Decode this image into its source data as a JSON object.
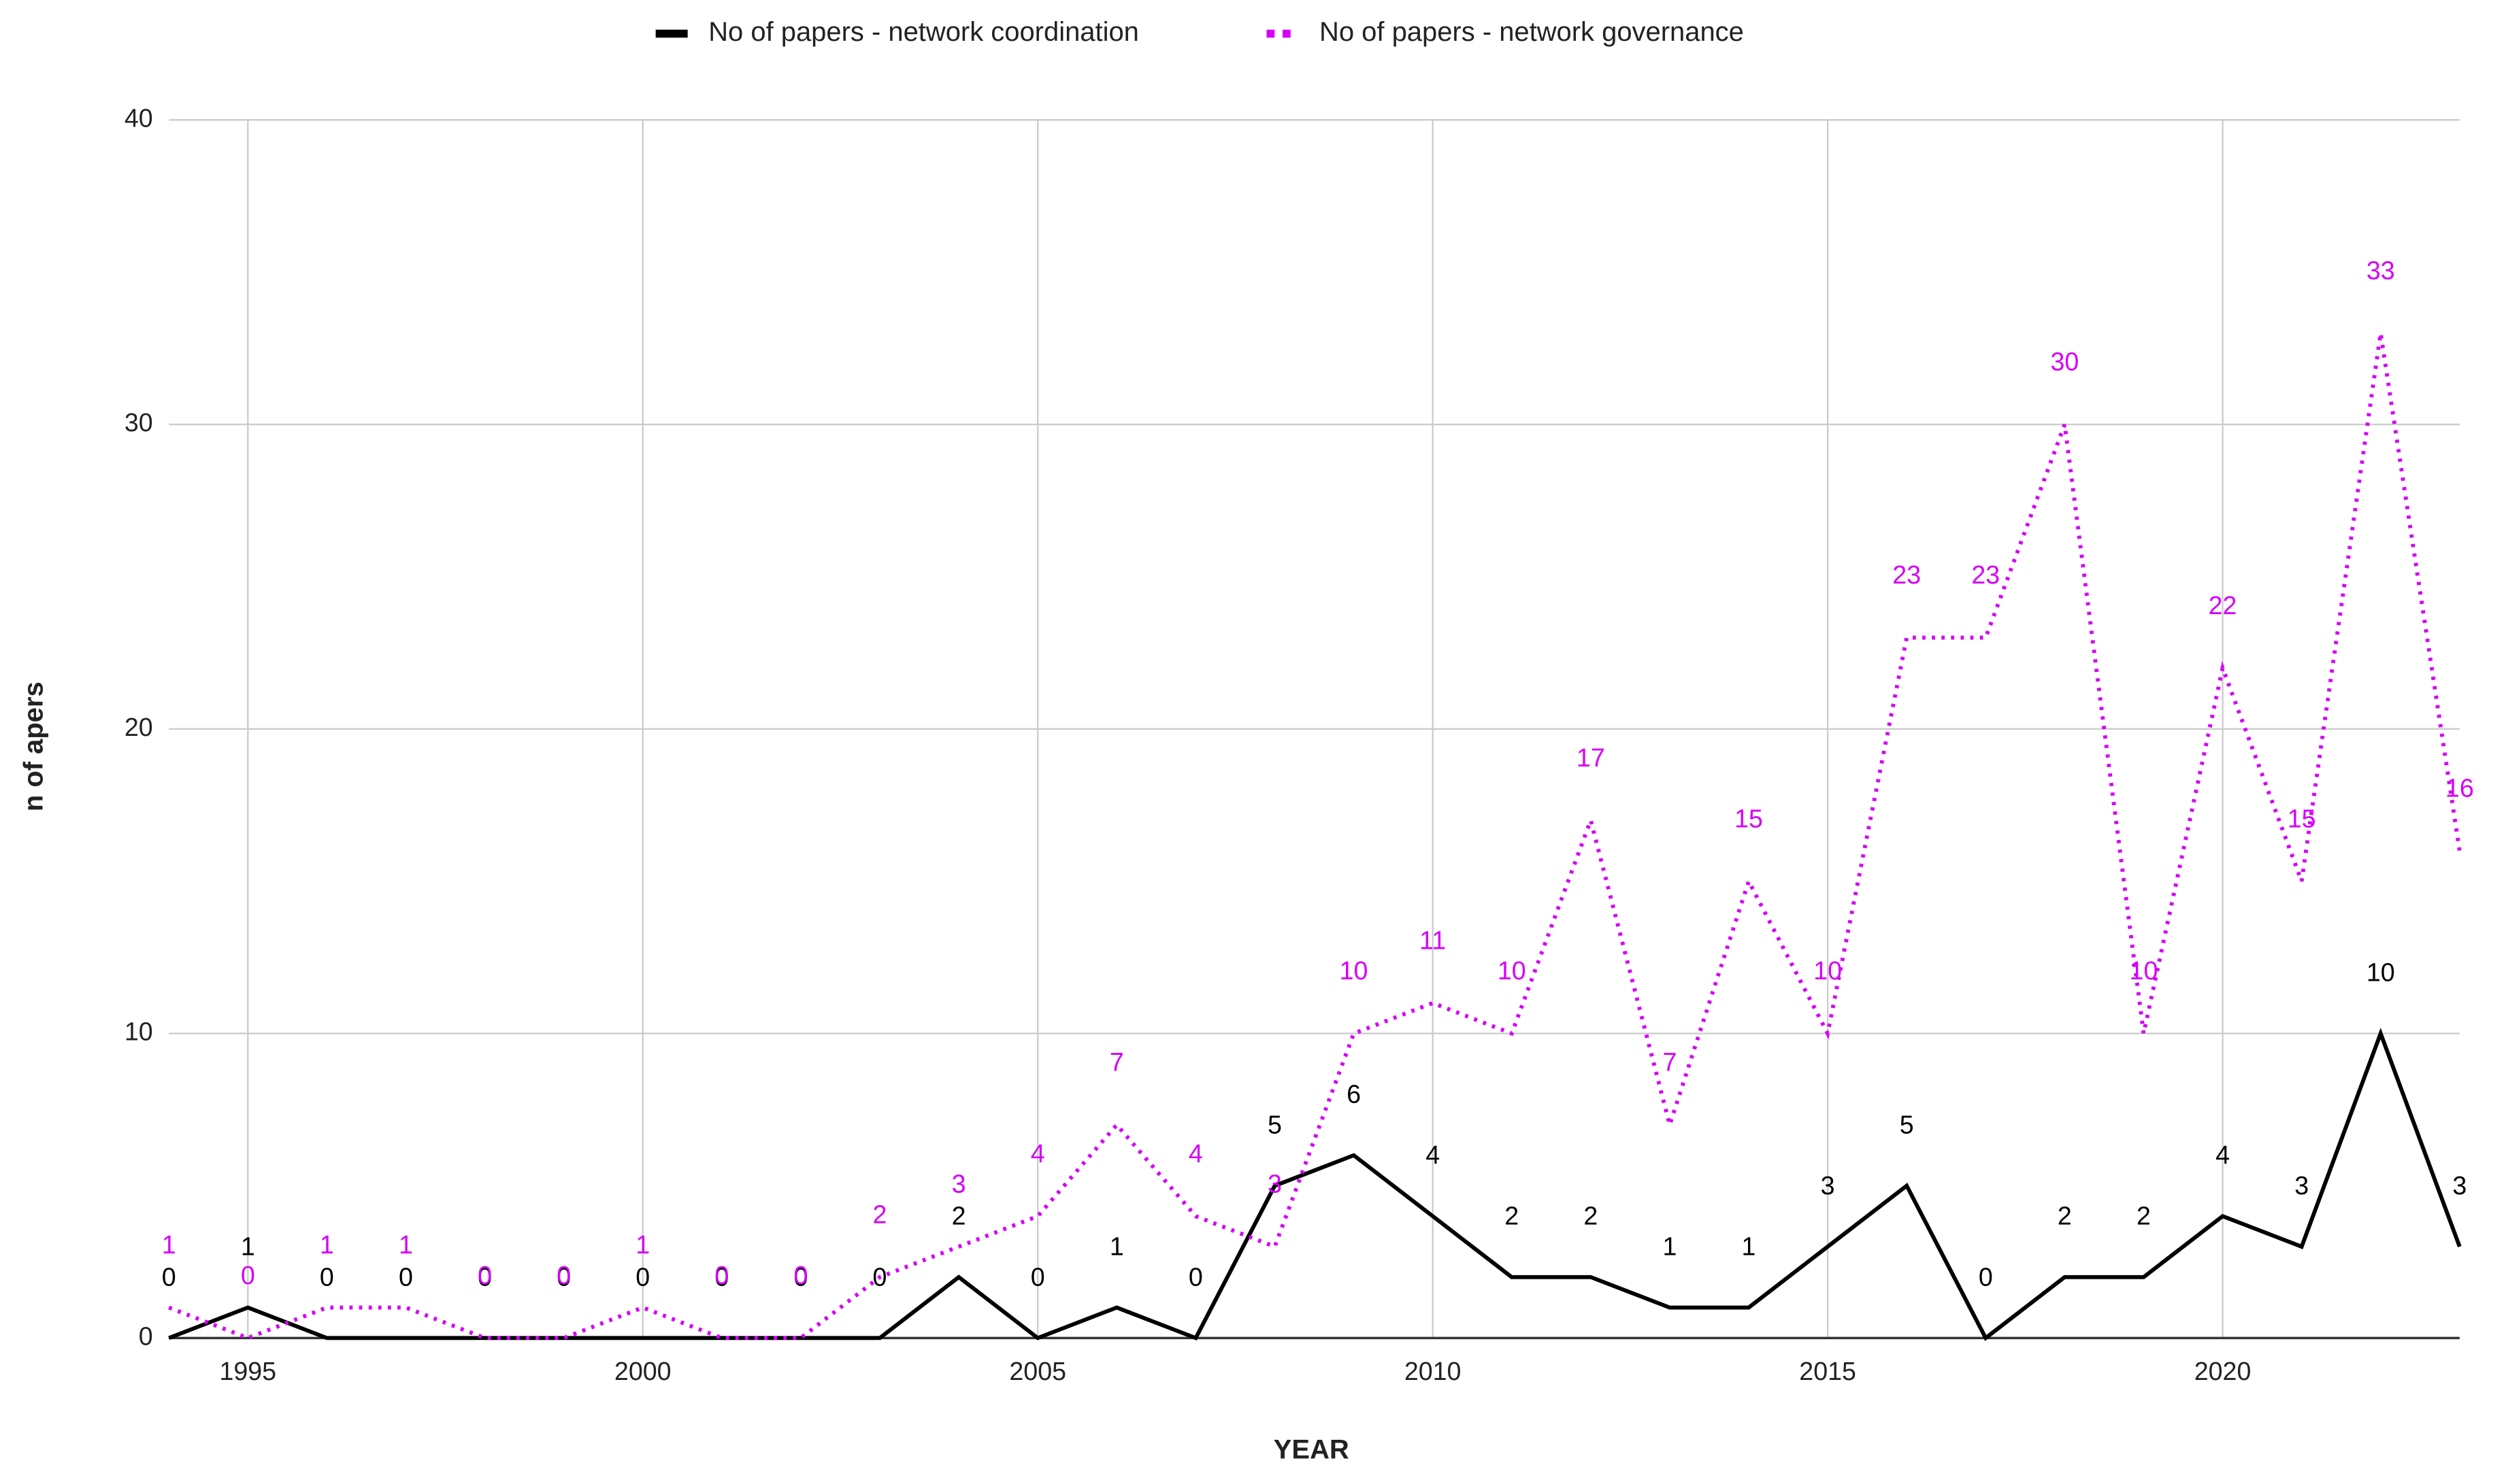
{
  "chart_data": {
    "type": "line",
    "x_label": "YEAR",
    "y_label": "n of apers",
    "x": [
      1994,
      1995,
      1996,
      1997,
      1998,
      1999,
      2000,
      2001,
      2002,
      2003,
      2004,
      2005,
      2006,
      2007,
      2008,
      2009,
      2010,
      2011,
      2012,
      2013,
      2014,
      2015,
      2016,
      2017,
      2018,
      2019,
      2020,
      2021,
      2022,
      2023
    ],
    "series": [
      {
        "name": "No of papers - network coordination",
        "color": "#000000",
        "dash": "solid",
        "values": [
          0,
          1,
          0,
          0,
          0,
          0,
          0,
          0,
          0,
          0,
          2,
          0,
          1,
          0,
          5,
          6,
          4,
          2,
          2,
          1,
          1,
          3,
          5,
          0,
          2,
          2,
          4,
          3,
          10,
          3
        ]
      },
      {
        "name": "No of papers - network governance",
        "color": "#d500f9",
        "dash": "dotted",
        "values": [
          1,
          0,
          1,
          1,
          0,
          0,
          1,
          0,
          0,
          2,
          3,
          4,
          7,
          4,
          3,
          10,
          11,
          10,
          17,
          7,
          15,
          10,
          23,
          23,
          30,
          10,
          22,
          15,
          33,
          16
        ]
      }
    ],
    "xlim": [
      1994,
      2023
    ],
    "xticks": [
      1995,
      2000,
      2005,
      2010,
      2015,
      2020
    ],
    "ylim": [
      0,
      40
    ],
    "yticks": [
      0,
      10,
      20,
      30,
      40
    ],
    "grid": true,
    "legend": "top"
  }
}
